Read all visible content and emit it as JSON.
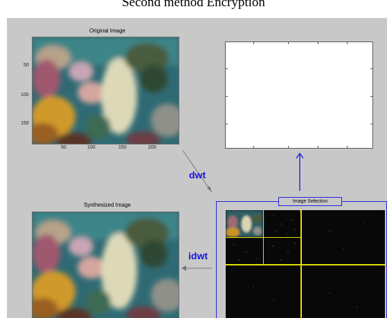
{
  "window": {
    "title": "Second method Encryption"
  },
  "original": {
    "title": "Original Image",
    "yticks": [
      "50",
      "100",
      "150"
    ],
    "xticks": [
      "50",
      "100",
      "150",
      "200"
    ]
  },
  "synth": {
    "title": "Synthesized Image"
  },
  "arrows": {
    "dwt": "dwt",
    "idwt": "idwt"
  },
  "selection": {
    "title": "Image Selection"
  }
}
